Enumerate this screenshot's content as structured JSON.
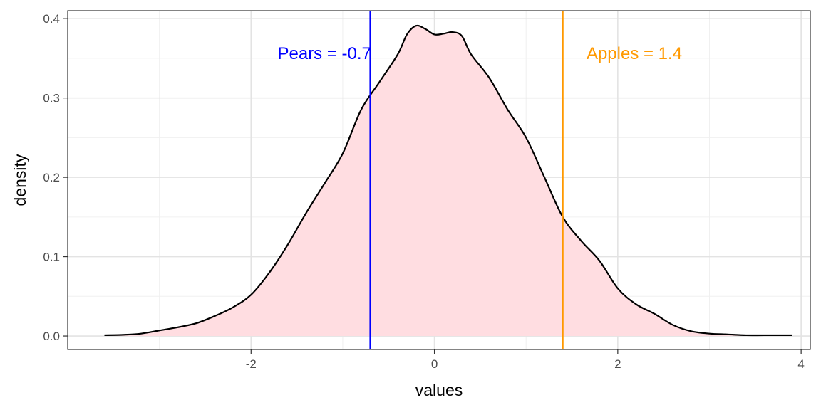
{
  "chart_data": {
    "type": "area",
    "title": "",
    "xlabel": "values",
    "ylabel": "density",
    "xlim": [
      -4,
      4.1
    ],
    "ylim": [
      -0.017,
      0.41
    ],
    "x_ticks": [
      -2,
      0,
      2,
      4
    ],
    "x_tick_labels": [
      "-2",
      "0",
      "2",
      "4"
    ],
    "y_ticks": [
      0.0,
      0.1,
      0.2,
      0.3,
      0.4
    ],
    "y_tick_labels": [
      "0.0",
      "0.1",
      "0.2",
      "0.3",
      "0.4"
    ],
    "grid": true,
    "fill_color": "#ffdde1",
    "line_color": "#000000",
    "density": {
      "x": [
        -3.6,
        -3.4,
        -3.2,
        -3.0,
        -2.8,
        -2.6,
        -2.4,
        -2.2,
        -2.0,
        -1.8,
        -1.6,
        -1.4,
        -1.2,
        -1.0,
        -0.8,
        -0.6,
        -0.4,
        -0.3,
        -0.2,
        -0.1,
        0.0,
        0.1,
        0.2,
        0.3,
        0.4,
        0.6,
        0.8,
        1.0,
        1.2,
        1.4,
        1.6,
        1.8,
        2.0,
        2.2,
        2.4,
        2.6,
        2.8,
        3.0,
        3.2,
        3.4,
        3.6,
        3.9
      ],
      "y": [
        0.001,
        0.0015,
        0.003,
        0.007,
        0.011,
        0.016,
        0.025,
        0.036,
        0.052,
        0.08,
        0.115,
        0.155,
        0.192,
        0.23,
        0.285,
        0.32,
        0.355,
        0.38,
        0.391,
        0.387,
        0.38,
        0.381,
        0.383,
        0.378,
        0.355,
        0.325,
        0.285,
        0.25,
        0.2,
        0.15,
        0.12,
        0.095,
        0.06,
        0.04,
        0.028,
        0.014,
        0.006,
        0.003,
        0.002,
        0.001,
        0.001,
        0.001
      ]
    },
    "vlines": [
      {
        "x": -0.7,
        "color": "#0000ff",
        "label": "Pears = -0.7",
        "label_x": -1.2,
        "label_y": 0.349
      },
      {
        "x": 1.4,
        "color": "#ff9900",
        "label": "Apples = 1.4",
        "label_x": 2.18,
        "label_y": 0.349
      }
    ]
  }
}
